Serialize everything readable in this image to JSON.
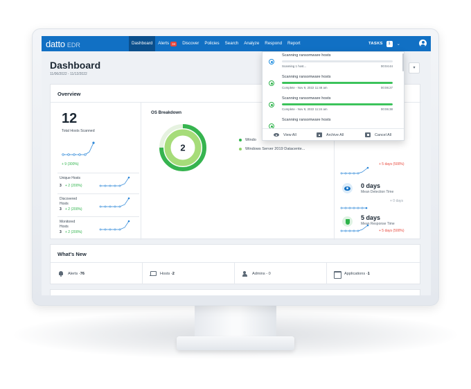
{
  "nav": {
    "logo": "datto",
    "logo_sub": "EDR",
    "items": [
      {
        "label": "Dashboard",
        "active": true
      },
      {
        "label": "Alerts",
        "badge": "34"
      },
      {
        "label": "Discover"
      },
      {
        "label": "Policies"
      },
      {
        "label": "Search"
      },
      {
        "label": "Analyze"
      },
      {
        "label": "Respond"
      },
      {
        "label": "Report"
      }
    ],
    "tasks_label": "TASKS",
    "tasks_count": "1",
    "tasks_chevron": "⌄"
  },
  "page": {
    "title": "Dashboard",
    "date_range": "11/06/2022 - 11/12/2022",
    "dropdown_glyph": "▾"
  },
  "overview": {
    "title": "Overview",
    "total_hosts": "12",
    "total_hosts_label": "Total Hosts Scanned",
    "total_hosts_delta": "+ 9 (300%)",
    "sub_metrics": [
      {
        "label": "Unique Hosts",
        "value": "3",
        "delta": "+ 2 (200%)"
      },
      {
        "label": "Discovered Hosts",
        "value": "3",
        "delta": "+ 2 (200%)"
      },
      {
        "label": "Monitored Hosts",
        "value": "3",
        "delta": "+ 2 (200%)"
      }
    ],
    "os_breakdown": {
      "title": "OS Breakdown",
      "total": "2",
      "legend": [
        {
          "label": "Windo",
          "color": "#2db34a"
        },
        {
          "label": "Windows Server 2019 Datacente...",
          "color": "#8fd36a"
        }
      ],
      "colors": {
        "outer": "#36b44f",
        "inner": "#a6dc79",
        "track": "#e6f2e0"
      }
    },
    "top_delta": "+ 5 days (500%)",
    "metrics": [
      {
        "title": "0 days",
        "label": "Mean Detection Time",
        "delta": "+ 0 days",
        "delta_color": "#9aa5b0",
        "icon": "eye-icon"
      },
      {
        "title": "5 days",
        "label": "Mean Response Time",
        "delta": "+ 5 days (500%)",
        "delta_color": "#e8463a",
        "icon": "shield-check-icon"
      }
    ]
  },
  "whats_new": {
    "title": "What's New",
    "items": [
      {
        "label": "Alerts - ",
        "value": "76",
        "icon": "bell-icon"
      },
      {
        "label": "Hosts - ",
        "value": "2",
        "icon": "laptop-icon"
      },
      {
        "label": "Admins - 0",
        "value": "",
        "icon": "admin-icon"
      },
      {
        "label": "Applications - ",
        "value": "1",
        "icon": "window-icon"
      }
    ]
  },
  "tasks_panel": {
    "tasks": [
      {
        "name": "Scanning ransomware hosts",
        "meta": "Scanning 1 host...",
        "time": "00:04:44",
        "progress": 0,
        "status": "running"
      },
      {
        "name": "Scanning ransomware hosts",
        "meta": "Complete - Nov 9, 2022 11:48 am",
        "time": "00:06:27",
        "progress": 100,
        "status": "complete"
      },
      {
        "name": "Scanning ransomware hosts",
        "meta": "Complete - Nov 9, 2022 11:24 am",
        "time": "00:06:38",
        "progress": 100,
        "status": "complete"
      },
      {
        "name": "Scanning ransomware hosts",
        "meta": "",
        "time": "",
        "progress": 0,
        "status": "complete"
      }
    ],
    "actions": [
      {
        "label": "View All",
        "icon": "view-icon"
      },
      {
        "label": "Archive All",
        "icon": "archive-icon"
      },
      {
        "label": "Cancel All",
        "icon": "cancel-icon"
      }
    ]
  }
}
